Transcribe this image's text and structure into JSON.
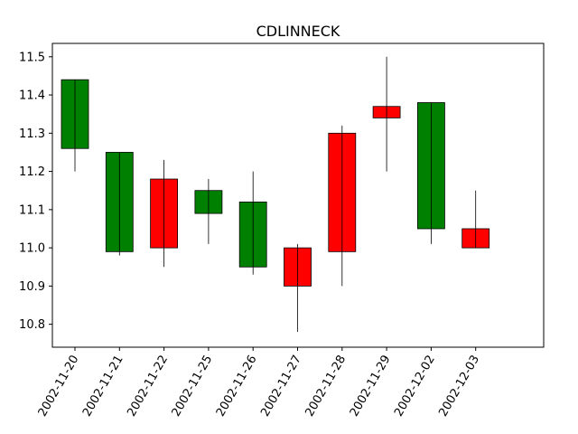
{
  "chart_data": {
    "type": "candlestick",
    "title": "CDLINNECK",
    "xlabel": "",
    "ylabel": "",
    "ylim": [
      10.74,
      11.535
    ],
    "yticks": [
      10.8,
      10.9,
      11.0,
      11.1,
      11.2,
      11.3,
      11.4,
      11.5
    ],
    "ytick_labels": [
      "10.8",
      "10.9",
      "11.0",
      "11.1",
      "11.2",
      "11.3",
      "11.4",
      "11.5"
    ],
    "grid": false,
    "categories": [
      "2002-11-20",
      "2002-11-21",
      "2002-11-22",
      "2002-11-25",
      "2002-11-26",
      "2002-11-27",
      "2002-11-28",
      "2002-11-29",
      "2002-12-02",
      "2002-12-03"
    ],
    "open": [
      11.26,
      11.25,
      11.0,
      11.09,
      11.12,
      10.9,
      10.99,
      11.34,
      11.05,
      11.0
    ],
    "close": [
      11.44,
      10.99,
      11.18,
      11.15,
      10.95,
      11.0,
      11.3,
      11.37,
      11.38,
      11.05
    ],
    "high": [
      11.44,
      11.25,
      11.23,
      11.18,
      11.2,
      11.01,
      11.32,
      11.5,
      11.38,
      11.15
    ],
    "low": [
      11.2,
      10.98,
      10.95,
      11.01,
      10.93,
      10.78,
      10.9,
      11.2,
      11.01,
      11.0
    ],
    "colors": [
      "#008000",
      "#008000",
      "#ff0000",
      "#008000",
      "#008000",
      "#ff0000",
      "#ff0000",
      "#ff0000",
      "#008000",
      "#ff0000"
    ]
  }
}
